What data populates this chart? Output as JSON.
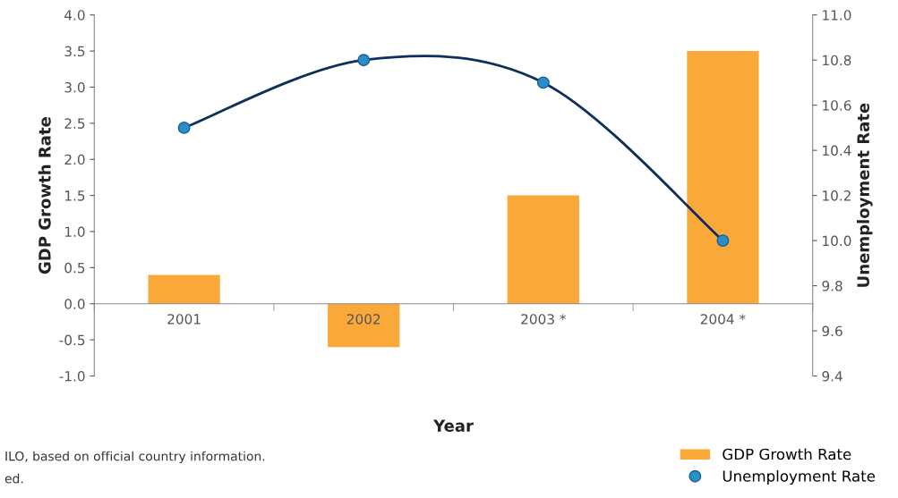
{
  "chart_data": {
    "type": "bar",
    "xlabel": "Year",
    "ylabel": "GDP Growth Rate",
    "y2label": "Unemployment Rate",
    "categories": [
      "2001",
      "2002",
      "2003 *",
      "2004 *"
    ],
    "series": [
      {
        "name": "GDP Growth Rate",
        "color": "#fba83a",
        "values": [
          0.4,
          -0.6,
          1.5,
          3.5
        ]
      },
      {
        "name": "Unemployment Rate",
        "type": "line",
        "axis": "y2",
        "color": "#0d2f5a",
        "marker": "circle",
        "values": [
          10.5,
          10.8,
          10.7,
          10.0
        ]
      }
    ],
    "ylim": [
      -1.0,
      4.0
    ],
    "yticks": [
      {
        "value": -1.0,
        "label": "-1.0"
      },
      {
        "value": -0.5,
        "label": "-0.5"
      },
      {
        "value": 0,
        "label": "0.0"
      },
      {
        "value": 0.5,
        "label": "0.5"
      },
      {
        "value": 1.0,
        "label": "1.0"
      },
      {
        "value": 1.5,
        "label": "1.5"
      },
      {
        "value": 2.0,
        "label": "2.0"
      },
      {
        "value": 2.5,
        "label": "2.5"
      },
      {
        "value": 3.0,
        "label": "3.0"
      },
      {
        "value": 3.5,
        "label": "3.5"
      },
      {
        "value": 4.0,
        "label": "4.0"
      }
    ],
    "y2lim": [
      9.4,
      11.0
    ],
    "y2ticks": [
      9.4,
      9.6,
      9.8,
      {
        "value": 10.0,
        "label": "10.0"
      },
      10.2,
      10.4,
      10.6,
      10.8,
      {
        "value": 11.0,
        "label": "11.0"
      }
    ],
    "grid": false,
    "legend": "bottom right",
    "annotations": [
      "ILO, based on official country information.",
      "ed."
    ]
  }
}
